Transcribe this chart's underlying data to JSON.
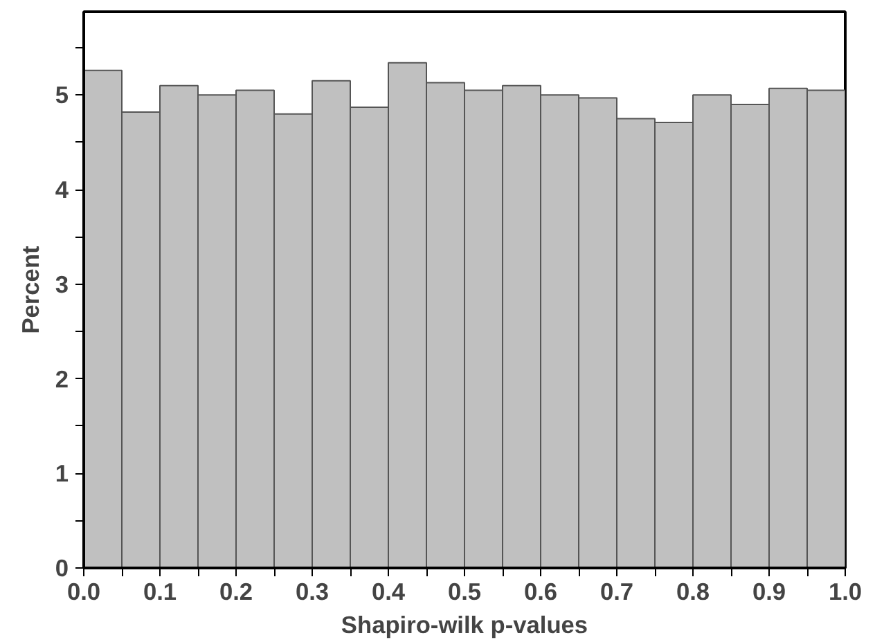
{
  "chart_data": {
    "type": "histogram",
    "xlabel": "Shapiro-wilk p-values",
    "ylabel": "Percent",
    "bins": [
      0.0,
      0.05,
      0.1,
      0.15,
      0.2,
      0.25,
      0.3,
      0.35,
      0.4,
      0.45,
      0.5,
      0.55,
      0.6,
      0.65,
      0.7,
      0.75,
      0.8,
      0.85,
      0.9,
      0.95,
      1.0
    ],
    "values": [
      5.26,
      4.82,
      5.1,
      5.0,
      5.05,
      4.8,
      5.15,
      4.87,
      5.34,
      5.13,
      5.05,
      5.1,
      5.0,
      4.97,
      4.75,
      4.71,
      5.0,
      4.9,
      5.07,
      5.05
    ],
    "color": "#c0c0c0",
    "xlim": [
      0,
      1
    ],
    "ylim": [
      0,
      5.88
    ],
    "xticks": [
      {
        "value": 0,
        "label": "0.0"
      },
      {
        "value": 0.05,
        "label": null
      },
      0.1,
      {
        "value": 0.15,
        "label": null
      },
      0.2,
      {
        "value": 0.25,
        "label": null
      },
      0.3,
      {
        "value": 0.35,
        "label": null
      },
      0.4,
      {
        "value": 0.45,
        "label": null
      },
      0.5,
      {
        "value": 0.55,
        "label": null
      },
      0.6,
      {
        "value": 0.65,
        "label": null
      },
      0.7,
      {
        "value": 0.75,
        "label": null
      },
      0.8,
      {
        "value": 0.85,
        "label": null
      },
      0.9,
      {
        "value": 0.95,
        "label": null
      },
      {
        "value": 1,
        "label": "1.0"
      }
    ],
    "yticks": [
      0,
      {
        "value": 0.5,
        "label": null
      },
      1,
      {
        "value": 1.5,
        "label": null
      },
      2,
      {
        "value": 2.5,
        "label": null
      },
      3,
      {
        "value": 3.5,
        "label": null
      },
      4,
      {
        "value": 4.5,
        "label": null
      },
      5,
      {
        "value": 5.5,
        "label": null
      }
    ],
    "grid": false
  }
}
